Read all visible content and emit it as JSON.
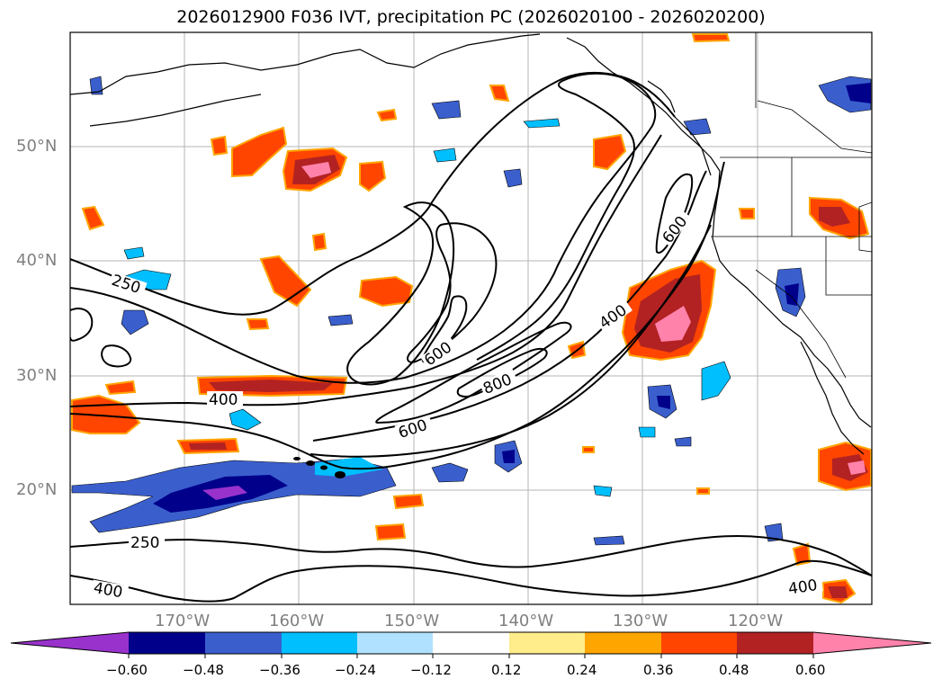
{
  "title": "2026012900 F036 IVT, precipitation PC (2026020100 - 2026020200)",
  "lat_labels": [
    "50°N",
    "40°N",
    "30°N",
    "20°N"
  ],
  "lon_labels": [
    "170°W",
    "160°W",
    "150°W",
    "140°W",
    "130°W",
    "120°W"
  ],
  "contour_labels": [
    "250",
    "400",
    "600",
    "600",
    "800",
    "600",
    "400",
    "250",
    "400",
    "400"
  ],
  "colorbar": {
    "ticks": [
      "−0.60",
      "−0.48",
      "−0.36",
      "−0.24",
      "−0.12",
      "0.12",
      "0.24",
      "0.36",
      "0.48",
      "0.60"
    ],
    "colors": [
      "#9932cc",
      "#00008b",
      "#3a5fcd",
      "#00bfff",
      "#b0e2ff",
      "#ffffff",
      "#ffec8b",
      "#ffa500",
      "#ff4500",
      "#b22222",
      "#ff82ab"
    ]
  },
  "chart_data": {
    "type": "map",
    "title": "2026012900 F036 IVT, precipitation PC (2026020100 - 2026020200)",
    "lon_range": [
      -180,
      -110
    ],
    "lat_range": [
      10,
      60
    ],
    "ivt_contour_levels": [
      250,
      400,
      600,
      800
    ],
    "colorbar_levels": [
      -0.6,
      -0.48,
      -0.36,
      -0.24,
      -0.12,
      0.12,
      0.24,
      0.36,
      0.48,
      0.6
    ],
    "colorbar_extend": "both"
  }
}
